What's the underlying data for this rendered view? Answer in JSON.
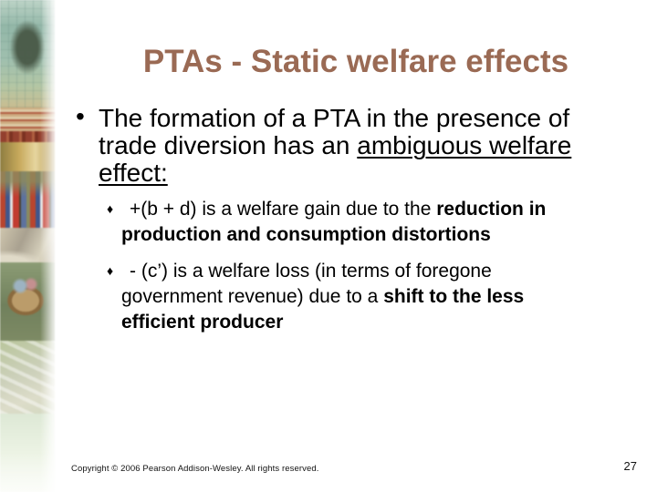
{
  "slide": {
    "title": "PTAs - Static welfare effects",
    "bullet": {
      "marker": "•",
      "text_before": "The formation of a PTA in the presence of trade diversion has an ",
      "text_underlined": "ambiguous welfare effect:"
    },
    "sub_bullets": [
      {
        "marker": "♦",
        "text_normal": "+(b + d) is a welfare gain due to the ",
        "text_bold": "reduction in production and consumption distortions"
      },
      {
        "marker": "♦",
        "text_normal": "- (c’) is a welfare loss (in terms of foregone government revenue) due to a ",
        "text_bold": "shift to the less efficient producer"
      }
    ],
    "footer": {
      "copyright": "Copyright © 2006 Pearson Addison-Wesley. All rights reserved.",
      "page_number": "27"
    }
  },
  "colors": {
    "title": "#9a6a54",
    "body": "#000000",
    "footer": "#121212",
    "background": "#ffffff"
  }
}
